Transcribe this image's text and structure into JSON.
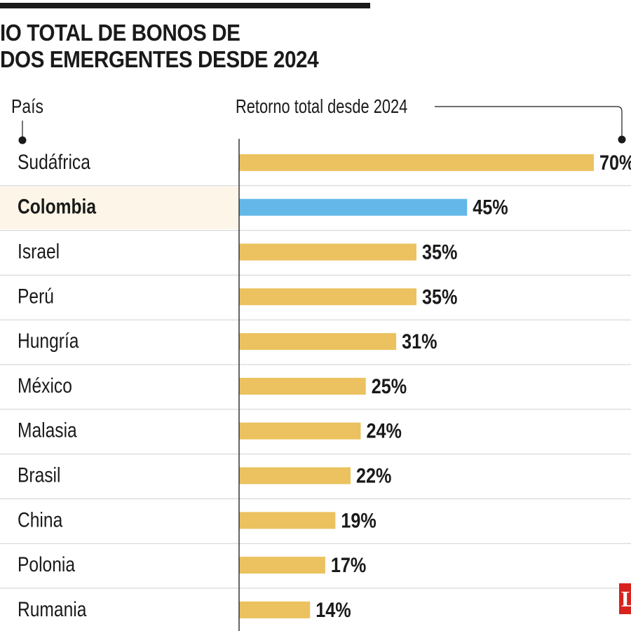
{
  "title": {
    "line1": "IO TOTAL DE BONOS DE",
    "line2": "DOS EMERGENTES DESDE 2024"
  },
  "headers": {
    "country": "País",
    "value": "Retorno total desde 2024"
  },
  "colors": {
    "bar": "#ebc25f",
    "highlight_bar": "#63b8e8",
    "highlight_row": "#fdf6e8",
    "divider": "#cfcfcf",
    "axis": "#333333",
    "logo": "#d7231e"
  },
  "chart_data": {
    "type": "bar",
    "orientation": "horizontal",
    "categories": [
      "Sudáfrica",
      "Colombia",
      "Israel",
      "Perú",
      "Hungría",
      "México",
      "Malasia",
      "Brasil",
      "China",
      "Polonia",
      "Rumania"
    ],
    "values": [
      70,
      45,
      35,
      35,
      31,
      25,
      24,
      22,
      19,
      17,
      14
    ],
    "labels": [
      "70%",
      "45%",
      "35%",
      "35%",
      "31%",
      "25%",
      "24%",
      "22%",
      "19%",
      "17%",
      "14%"
    ],
    "highlight": "Colombia",
    "xlim": [
      0,
      70
    ],
    "grid": false,
    "legend": "none"
  },
  "logo": {
    "text": "L"
  }
}
